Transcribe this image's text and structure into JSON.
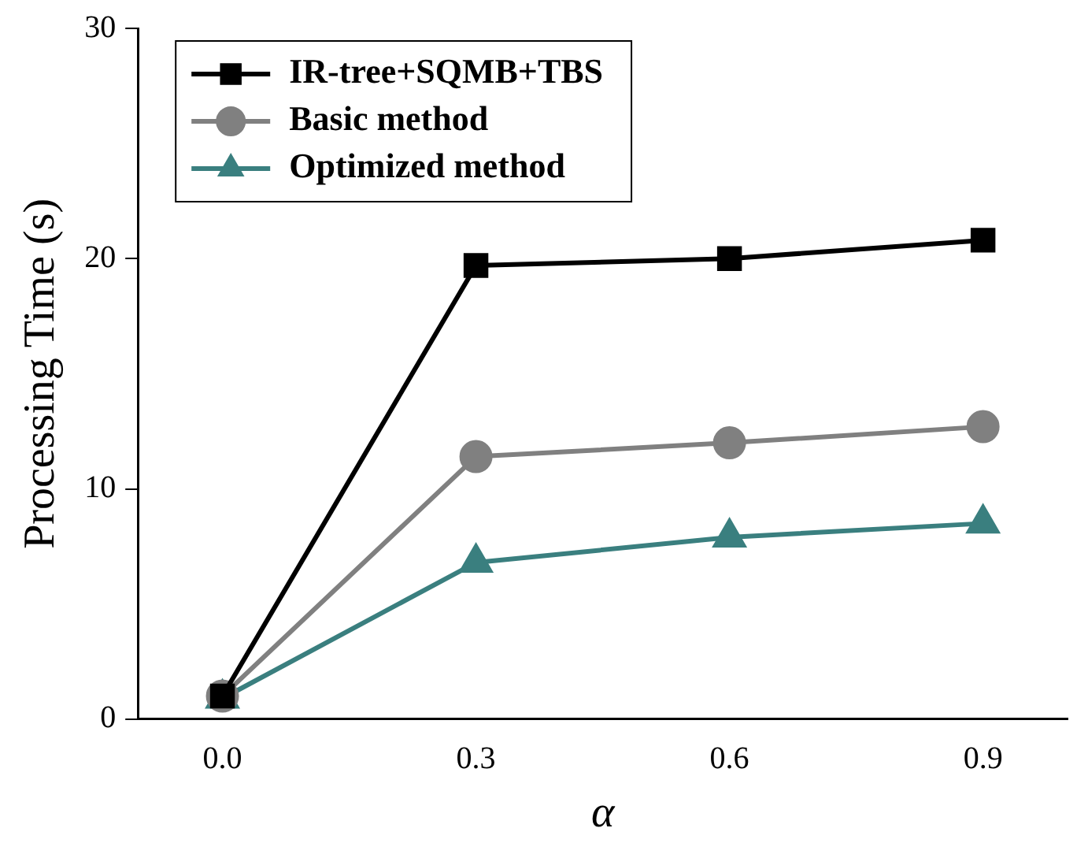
{
  "chart_data": {
    "type": "line",
    "xlabel": "α",
    "ylabel": "Processing Time (s)",
    "x": [
      0.0,
      0.3,
      0.6,
      0.9
    ],
    "xlim": [
      -0.1,
      1.0
    ],
    "xticks": [
      {
        "value": 0,
        "label": "0.0"
      },
      {
        "value": 0.3,
        "label": "0.3"
      },
      {
        "value": 0.6,
        "label": "0.6"
      },
      {
        "value": 0.9,
        "label": "0.9"
      }
    ],
    "ylim": [
      0,
      30
    ],
    "yticks": [
      0,
      10,
      20,
      30
    ],
    "grid": false,
    "legend": "top left",
    "series": [
      {
        "name": "IR-tree+SQMB+TBS",
        "color": "#000000",
        "marker": "square",
        "values": [
          1.0,
          19.7,
          20.0,
          20.8
        ]
      },
      {
        "name": "Basic method",
        "color": "#808080",
        "marker": "circle",
        "values": [
          1.0,
          11.4,
          12.0,
          12.7
        ]
      },
      {
        "name": "Optimized method",
        "color": "#3a7f7f",
        "marker": "triangle",
        "values": [
          0.9,
          6.8,
          7.9,
          8.5
        ]
      }
    ]
  }
}
